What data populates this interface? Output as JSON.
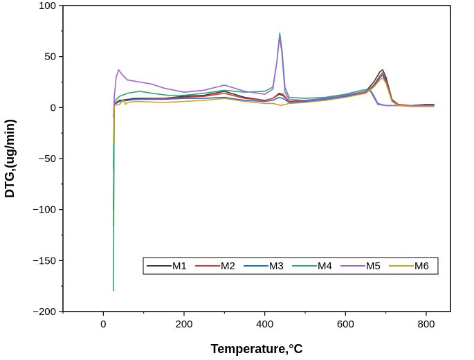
{
  "chart_data": {
    "type": "line",
    "xlabel": "Temperature,°C",
    "ylabel": "DTG,(ug/min)",
    "xlim": [
      -100,
      860
    ],
    "ylim": [
      -200,
      100
    ],
    "x_ticks": [
      0,
      200,
      400,
      600,
      800
    ],
    "y_ticks": [
      -200,
      -150,
      -100,
      -50,
      0,
      50,
      100
    ],
    "x_tick_labels": [
      "0",
      "200",
      "400",
      "600",
      "800"
    ],
    "y_tick_labels": [
      "−200",
      "−150",
      "−100",
      "−50",
      "0",
      "50",
      "100"
    ],
    "grid": false,
    "legend": {
      "placement": "bottom-right",
      "orientation": "horizontal"
    },
    "series": [
      {
        "name": "M1",
        "color": "#3a3a3a",
        "points": [
          [
            25,
            -100
          ],
          [
            27,
            4
          ],
          [
            40,
            7
          ],
          [
            80,
            9
          ],
          [
            150,
            9
          ],
          [
            200,
            11
          ],
          [
            250,
            12
          ],
          [
            300,
            16
          ],
          [
            350,
            10
          ],
          [
            400,
            7
          ],
          [
            420,
            9
          ],
          [
            435,
            13
          ],
          [
            445,
            12
          ],
          [
            460,
            6
          ],
          [
            500,
            7
          ],
          [
            550,
            9
          ],
          [
            600,
            12
          ],
          [
            650,
            16
          ],
          [
            670,
            25
          ],
          [
            685,
            35
          ],
          [
            692,
            37
          ],
          [
            700,
            30
          ],
          [
            715,
            8
          ],
          [
            730,
            3
          ],
          [
            760,
            2
          ],
          [
            800,
            3
          ],
          [
            820,
            3
          ]
        ]
      },
      {
        "name": "M2",
        "color": "#e03030",
        "points": [
          [
            25,
            -117
          ],
          [
            27,
            3
          ],
          [
            40,
            6
          ],
          [
            80,
            8
          ],
          [
            150,
            9
          ],
          [
            200,
            10
          ],
          [
            250,
            11
          ],
          [
            300,
            14
          ],
          [
            350,
            9
          ],
          [
            400,
            7
          ],
          [
            420,
            9
          ],
          [
            435,
            14
          ],
          [
            445,
            13
          ],
          [
            460,
            6
          ],
          [
            500,
            7
          ],
          [
            550,
            8
          ],
          [
            600,
            11
          ],
          [
            650,
            15
          ],
          [
            670,
            22
          ],
          [
            685,
            31
          ],
          [
            692,
            34
          ],
          [
            700,
            27
          ],
          [
            715,
            8
          ],
          [
            730,
            3
          ],
          [
            760,
            2
          ],
          [
            800,
            2
          ],
          [
            820,
            2
          ]
        ]
      },
      {
        "name": "M3",
        "color": "#1f6fd6",
        "points": [
          [
            25,
            -60
          ],
          [
            27,
            4
          ],
          [
            40,
            6
          ],
          [
            80,
            8
          ],
          [
            150,
            8
          ],
          [
            200,
            9
          ],
          [
            250,
            9
          ],
          [
            300,
            10
          ],
          [
            350,
            7
          ],
          [
            400,
            6
          ],
          [
            420,
            7
          ],
          [
            435,
            10
          ],
          [
            445,
            9
          ],
          [
            460,
            5
          ],
          [
            500,
            6
          ],
          [
            550,
            8
          ],
          [
            600,
            11
          ],
          [
            650,
            14
          ],
          [
            670,
            21
          ],
          [
            685,
            29
          ],
          [
            692,
            32
          ],
          [
            700,
            25
          ],
          [
            715,
            7
          ],
          [
            730,
            2
          ],
          [
            760,
            2
          ],
          [
            800,
            2
          ],
          [
            820,
            2
          ]
        ]
      },
      {
        "name": "M4",
        "color": "#2eaa6e",
        "points": [
          [
            25,
            -180
          ],
          [
            27,
            6
          ],
          [
            40,
            11
          ],
          [
            60,
            14
          ],
          [
            90,
            16
          ],
          [
            120,
            14
          ],
          [
            160,
            12
          ],
          [
            200,
            12
          ],
          [
            250,
            14
          ],
          [
            300,
            17
          ],
          [
            350,
            15
          ],
          [
            400,
            16
          ],
          [
            420,
            20
          ],
          [
            430,
            45
          ],
          [
            437,
            73
          ],
          [
            443,
            55
          ],
          [
            450,
            20
          ],
          [
            460,
            10
          ],
          [
            500,
            9
          ],
          [
            550,
            10
          ],
          [
            600,
            13
          ],
          [
            640,
            17
          ],
          [
            660,
            18
          ],
          [
            670,
            12
          ],
          [
            680,
            4
          ],
          [
            700,
            2
          ],
          [
            760,
            2
          ],
          [
            800,
            2
          ],
          [
            820,
            2
          ]
        ]
      },
      {
        "name": "M5",
        "color": "#a060e0",
        "points": [
          [
            25,
            -10
          ],
          [
            27,
            10
          ],
          [
            32,
            30
          ],
          [
            38,
            37
          ],
          [
            45,
            33
          ],
          [
            60,
            27
          ],
          [
            90,
            25
          ],
          [
            120,
            23
          ],
          [
            150,
            19
          ],
          [
            200,
            15
          ],
          [
            250,
            17
          ],
          [
            300,
            22
          ],
          [
            350,
            16
          ],
          [
            400,
            13
          ],
          [
            420,
            18
          ],
          [
            430,
            45
          ],
          [
            436,
            69
          ],
          [
            442,
            55
          ],
          [
            450,
            15
          ],
          [
            460,
            8
          ],
          [
            500,
            7
          ],
          [
            550,
            9
          ],
          [
            600,
            12
          ],
          [
            640,
            15
          ],
          [
            660,
            17
          ],
          [
            670,
            10
          ],
          [
            680,
            3
          ],
          [
            700,
            2
          ],
          [
            760,
            2
          ],
          [
            800,
            2
          ],
          [
            820,
            2
          ]
        ]
      },
      {
        "name": "M6",
        "color": "#d4a017",
        "points": [
          [
            25,
            -35
          ],
          [
            27,
            2
          ],
          [
            40,
            3
          ],
          [
            50,
            8
          ],
          [
            55,
            3
          ],
          [
            60,
            5
          ],
          [
            80,
            6
          ],
          [
            150,
            5
          ],
          [
            200,
            6
          ],
          [
            250,
            7
          ],
          [
            300,
            9
          ],
          [
            350,
            6
          ],
          [
            400,
            4
          ],
          [
            420,
            4
          ],
          [
            440,
            2
          ],
          [
            460,
            4
          ],
          [
            500,
            5
          ],
          [
            550,
            7
          ],
          [
            600,
            10
          ],
          [
            650,
            14
          ],
          [
            670,
            20
          ],
          [
            685,
            27
          ],
          [
            692,
            29
          ],
          [
            700,
            24
          ],
          [
            715,
            6
          ],
          [
            730,
            2
          ],
          [
            760,
            1
          ],
          [
            800,
            1
          ],
          [
            820,
            1
          ]
        ]
      }
    ]
  }
}
